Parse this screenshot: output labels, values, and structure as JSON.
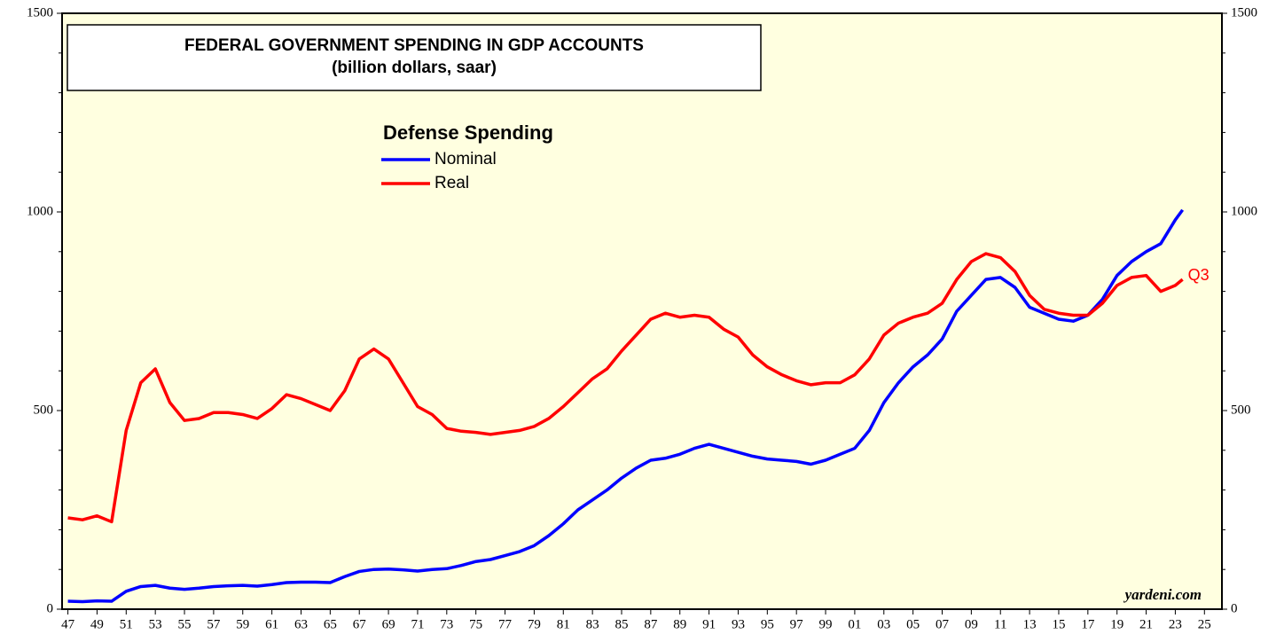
{
  "chart_data": {
    "type": "line",
    "title": "FEDERAL GOVERNMENT SPENDING IN GDP ACCOUNTS",
    "subtitle": "(billion dollars, saar)",
    "legend_title": "Defense Spending",
    "annotations": [
      "Q3",
      "yardeni.com"
    ],
    "x": [
      1947,
      1948,
      1949,
      1950,
      1951,
      1952,
      1953,
      1954,
      1955,
      1956,
      1957,
      1958,
      1959,
      1960,
      1961,
      1962,
      1963,
      1964,
      1965,
      1966,
      1967,
      1968,
      1969,
      1970,
      1971,
      1972,
      1973,
      1974,
      1975,
      1976,
      1977,
      1978,
      1979,
      1980,
      1981,
      1982,
      1983,
      1984,
      1985,
      1986,
      1987,
      1988,
      1989,
      1990,
      1991,
      1992,
      1993,
      1994,
      1995,
      1996,
      1997,
      1998,
      1999,
      2000,
      2001,
      2002,
      2003,
      2004,
      2005,
      2006,
      2007,
      2008,
      2009,
      2010,
      2011,
      2012,
      2013,
      2014,
      2015,
      2016,
      2017,
      2018,
      2019,
      2020,
      2021,
      2022,
      2023,
      2023.5
    ],
    "series": [
      {
        "name": "Nominal",
        "color": "#0000ff",
        "values": [
          20,
          19,
          21,
          20,
          45,
          57,
          60,
          53,
          50,
          53,
          57,
          59,
          60,
          58,
          62,
          67,
          68,
          68,
          67,
          82,
          95,
          100,
          101,
          99,
          96,
          100,
          102,
          110,
          120,
          125,
          135,
          145,
          160,
          185,
          215,
          250,
          275,
          300,
          330,
          355,
          375,
          380,
          390,
          405,
          415,
          405,
          395,
          385,
          378,
          375,
          372,
          365,
          375,
          390,
          405,
          450,
          520,
          570,
          610,
          640,
          680,
          750,
          790,
          830,
          835,
          810,
          760,
          745,
          730,
          725,
          740,
          780,
          840,
          875,
          900,
          920,
          980,
          1005
        ]
      },
      {
        "name": "Real",
        "color": "#ff0000",
        "values": [
          230,
          225,
          235,
          220,
          450,
          570,
          605,
          520,
          475,
          480,
          495,
          495,
          490,
          480,
          505,
          540,
          530,
          515,
          500,
          550,
          630,
          655,
          630,
          570,
          510,
          490,
          455,
          448,
          445,
          440,
          445,
          450,
          460,
          480,
          510,
          545,
          580,
          605,
          650,
          690,
          730,
          745,
          735,
          740,
          735,
          705,
          685,
          640,
          610,
          590,
          575,
          565,
          570,
          570,
          590,
          630,
          690,
          720,
          735,
          745,
          770,
          830,
          875,
          895,
          885,
          850,
          790,
          755,
          745,
          740,
          740,
          770,
          815,
          835,
          840,
          800,
          815,
          830
        ]
      }
    ],
    "xlim": [
      1946.6,
      2026.2
    ],
    "xticks": [
      {
        "value": 1947,
        "label": "47"
      },
      {
        "value": 1949,
        "label": "49"
      },
      {
        "value": 1951,
        "label": "51"
      },
      {
        "value": 1953,
        "label": "53"
      },
      {
        "value": 1955,
        "label": "55"
      },
      {
        "value": 1957,
        "label": "57"
      },
      {
        "value": 1959,
        "label": "59"
      },
      {
        "value": 1961,
        "label": "61"
      },
      {
        "value": 1963,
        "label": "63"
      },
      {
        "value": 1965,
        "label": "65"
      },
      {
        "value": 1967,
        "label": "67"
      },
      {
        "value": 1969,
        "label": "69"
      },
      {
        "value": 1971,
        "label": "71"
      },
      {
        "value": 1973,
        "label": "73"
      },
      {
        "value": 1975,
        "label": "75"
      },
      {
        "value": 1977,
        "label": "77"
      },
      {
        "value": 1979,
        "label": "79"
      },
      {
        "value": 1981,
        "label": "81"
      },
      {
        "value": 1983,
        "label": "83"
      },
      {
        "value": 1985,
        "label": "85"
      },
      {
        "value": 1987,
        "label": "87"
      },
      {
        "value": 1989,
        "label": "89"
      },
      {
        "value": 1991,
        "label": "91"
      },
      {
        "value": 1993,
        "label": "93"
      },
      {
        "value": 1995,
        "label": "95"
      },
      {
        "value": 1997,
        "label": "97"
      },
      {
        "value": 1999,
        "label": "99"
      },
      {
        "value": 2001,
        "label": "01"
      },
      {
        "value": 2003,
        "label": "03"
      },
      {
        "value": 2005,
        "label": "05"
      },
      {
        "value": 2007,
        "label": "07"
      },
      {
        "value": 2009,
        "label": "09"
      },
      {
        "value": 2011,
        "label": "11"
      },
      {
        "value": 2013,
        "label": "13"
      },
      {
        "value": 2015,
        "label": "15"
      },
      {
        "value": 2017,
        "label": "17"
      },
      {
        "value": 2019,
        "label": "19"
      },
      {
        "value": 2021,
        "label": "21"
      },
      {
        "value": 2023,
        "label": "23"
      },
      {
        "value": 2025,
        "label": "25"
      }
    ],
    "ylim": [
      0,
      1500
    ],
    "yticks": [
      0,
      500,
      1000,
      1500
    ],
    "yminorticks": [
      100,
      200,
      300,
      400,
      600,
      700,
      800,
      900,
      1100,
      1200,
      1300,
      1400
    ],
    "background": "#ffffe0"
  }
}
